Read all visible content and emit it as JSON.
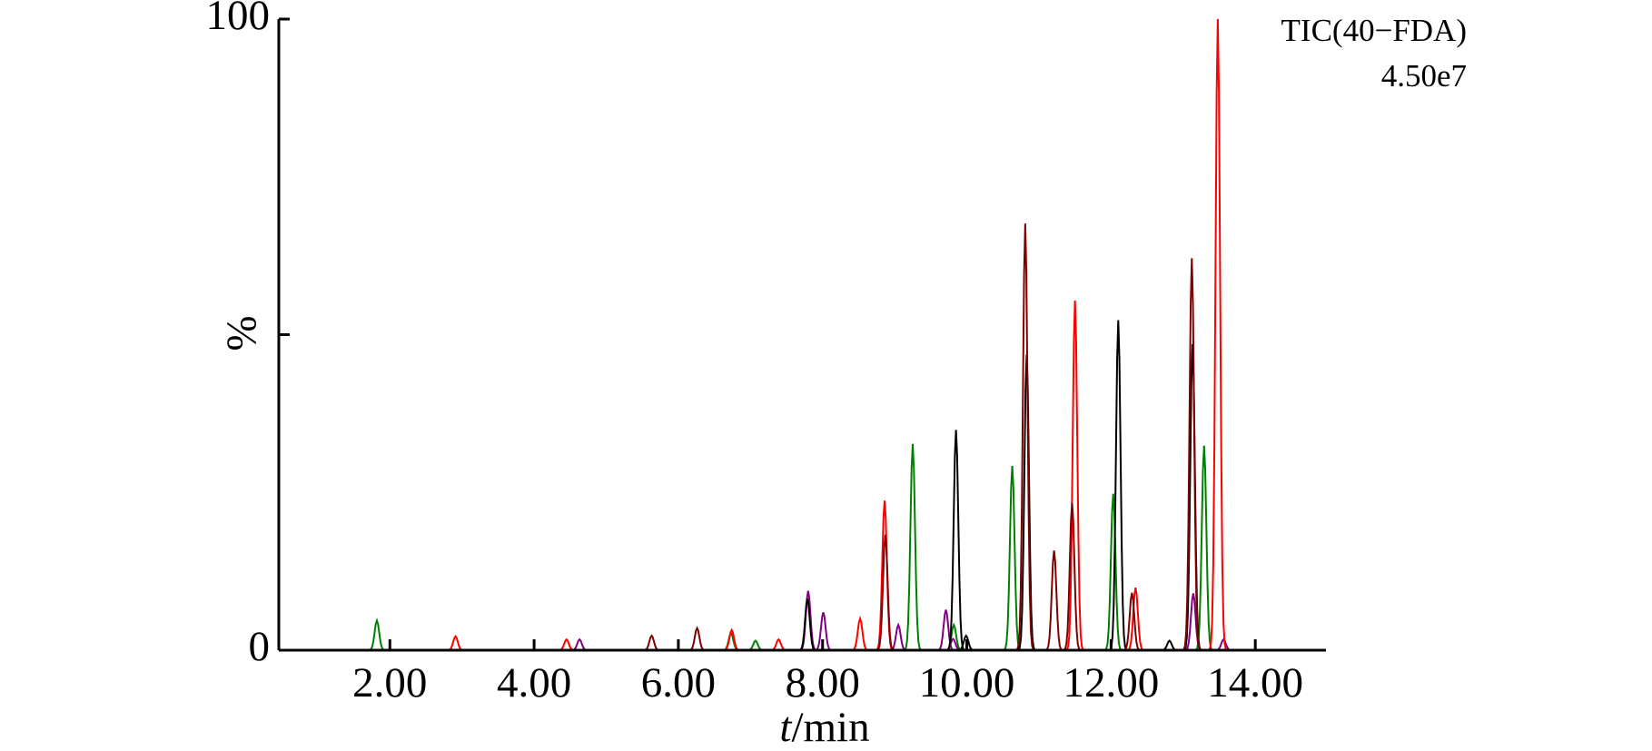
{
  "chart_data": {
    "type": "line",
    "annotation": [
      "TIC(40−FDA)",
      "4.50e7"
    ],
    "ylabel": "%",
    "xlabel": {
      "var": "t",
      "unit": "/min"
    },
    "xlim": [
      0.46,
      14.98
    ],
    "xticks": [
      {
        "value": 2,
        "label": "2.00"
      },
      {
        "value": 4,
        "label": "4.00"
      },
      {
        "value": 6,
        "label": "6.00"
      },
      {
        "value": 8,
        "label": "8.00"
      },
      {
        "value": 10,
        "label": "10.00"
      },
      {
        "value": 12,
        "label": "12.00"
      },
      {
        "value": 14,
        "label": "14.00"
      }
    ],
    "ylim": [
      0,
      100
    ],
    "yticks": [
      0,
      100
    ],
    "yminor_ticks": [
      50
    ],
    "series": [
      {
        "color": "#008000",
        "x": [
          1.82,
          6.73,
          7.07,
          9.25,
          9.82,
          10.63,
          12.03,
          13.29
        ],
        "values": [
          4.7,
          2.7,
          1.5,
          32.7,
          4,
          29.2,
          24.8,
          32.4
        ]
      },
      {
        "color": "#800080",
        "x": [
          4.63,
          7.8,
          8.01,
          9.05,
          9.71,
          9.81,
          13.14,
          13.56
        ],
        "values": [
          1.7,
          9.4,
          6,
          4,
          6.4,
          1.8,
          9,
          1.7
        ]
      },
      {
        "color": "#000000",
        "x": [
          7.79,
          9.85,
          9.99,
          10.83,
          12.1,
          12.81,
          13.13
        ],
        "values": [
          8.2,
          34.9,
          2.3,
          46.8,
          52.3,
          1.5,
          48.5
        ]
      },
      {
        "color": "#ff0000",
        "x": [
          2.91,
          4.45,
          6.74,
          7.39,
          8.52,
          8.86,
          11.5,
          12.34,
          13.48
        ],
        "values": [
          2.2,
          1.7,
          3.2,
          1.7,
          5,
          23.7,
          55.4,
          9.9,
          100
        ]
      },
      {
        "color": "#800000",
        "x": [
          5.63,
          6.26,
          8.87,
          10.81,
          11.21,
          11.46,
          12.29,
          13.12
        ],
        "values": [
          2.3,
          3.5,
          18.3,
          67.6,
          15.8,
          23.3,
          9.1,
          62.1
        ]
      }
    ]
  }
}
